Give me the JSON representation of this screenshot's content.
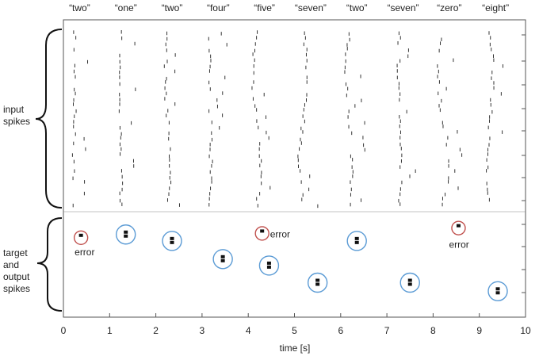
{
  "chart_data": {
    "type": "raster",
    "xlabel": "time [s]",
    "xlim": [
      0,
      10
    ],
    "xticks": [
      "0",
      "1",
      "2",
      "3",
      "4",
      "5",
      "6",
      "7",
      "8",
      "9",
      "10"
    ],
    "grid": false,
    "group_labels": {
      "input": "input\nspikes",
      "output": "target\nand\noutput\nspikes"
    },
    "presented_words": [
      {
        "t_start": 0,
        "label": "“two”"
      },
      {
        "t_start": 1,
        "label": "“one”"
      },
      {
        "t_start": 2,
        "label": "“two”"
      },
      {
        "t_start": 3,
        "label": "“four”"
      },
      {
        "t_start": 4,
        "label": "“five”"
      },
      {
        "t_start": 5,
        "label": "“seven”"
      },
      {
        "t_start": 6,
        "label": "“two”"
      },
      {
        "t_start": 7,
        "label": "“seven”"
      },
      {
        "t_start": 8,
        "label": "“zero”"
      },
      {
        "t_start": 9,
        "label": "“eight”"
      }
    ],
    "output_spikes": [
      {
        "t": 0.38,
        "row": 2.6,
        "correct": false,
        "label": "error"
      },
      {
        "t": 1.35,
        "row": 2.75,
        "correct": true
      },
      {
        "t": 2.35,
        "row": 2.45,
        "correct": true
      },
      {
        "t": 3.45,
        "row": 1.6,
        "correct": true
      },
      {
        "t": 4.3,
        "row": 2.8,
        "correct": false,
        "label": "error"
      },
      {
        "t": 4.45,
        "row": 1.3,
        "correct": true
      },
      {
        "t": 5.5,
        "row": 0.5,
        "correct": true
      },
      {
        "t": 6.35,
        "row": 2.45,
        "correct": true
      },
      {
        "t": 7.5,
        "row": 0.5,
        "correct": true
      },
      {
        "t": 8.55,
        "row": 3.05,
        "correct": false,
        "label": "error"
      },
      {
        "t": 9.4,
        "row": 0.1,
        "correct": true
      }
    ],
    "colors": {
      "correct_circle": "#5b9bd5",
      "error_circle": "#c0504d",
      "spike": "#333333",
      "axis": "#555555"
    }
  }
}
